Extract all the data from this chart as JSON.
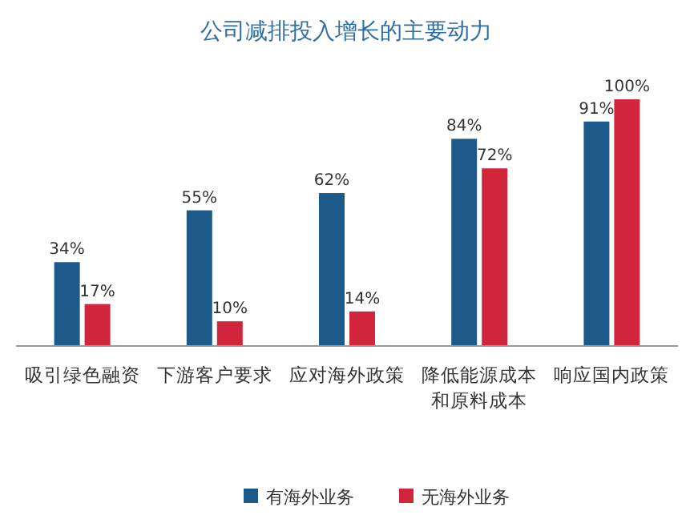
{
  "chart_data": {
    "type": "bar",
    "title": "公司减排投入增长的主要动力",
    "categories": [
      "吸引绿色融资",
      "下游客户要求",
      "应对海外政策",
      "降低能源成本和原料成本",
      "响应国内政策"
    ],
    "series": [
      {
        "name": "有海外业务",
        "color": "#1d5a8c",
        "values": [
          34,
          55,
          62,
          84,
          91
        ],
        "value_labels": [
          "34%",
          "55%",
          "62%",
          "84%",
          "91%"
        ]
      },
      {
        "name": "无海外业务",
        "color": "#d0253a",
        "values": [
          17,
          10,
          14,
          72,
          100
        ],
        "value_labels": [
          "17%",
          "10%",
          "14%",
          "72%",
          "100%"
        ]
      }
    ],
    "legend": "bottom"
  }
}
